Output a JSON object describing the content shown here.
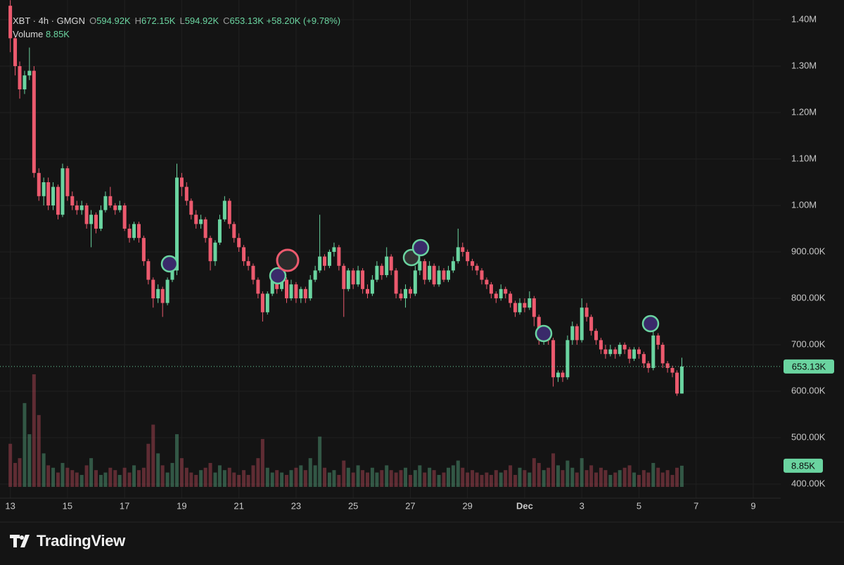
{
  "header": {
    "symbol": "XBT · 4h · GMGN",
    "open_key": "O",
    "open": "594.92K",
    "high_key": "H",
    "high": "672.15K",
    "low_key": "L",
    "low": "594.92K",
    "close_key": "C",
    "close": "653.13K",
    "change": "+58.20K (+9.78%)",
    "volume_key": "Volume",
    "volume": "8.85K"
  },
  "chart_data": {
    "type": "candlestick",
    "x": [
      13,
      13.17,
      13.33,
      13.5,
      13.67,
      13.83,
      14,
      14.17,
      14.33,
      14.5,
      14.67,
      14.83,
      15,
      15.17,
      15.33,
      15.5,
      15.67,
      15.83,
      16,
      16.17,
      16.33,
      16.5,
      16.67,
      16.83,
      17,
      17.17,
      17.33,
      17.5,
      17.67,
      17.83,
      18,
      18.17,
      18.33,
      18.5,
      18.67,
      18.83,
      19,
      19.17,
      19.33,
      19.5,
      19.67,
      19.83,
      20,
      20.17,
      20.33,
      20.5,
      20.67,
      20.83,
      21,
      21.17,
      21.33,
      21.5,
      21.67,
      21.83,
      22,
      22.17,
      22.33,
      22.5,
      22.67,
      22.83,
      23,
      23.17,
      23.33,
      23.5,
      23.67,
      23.83,
      24,
      24.17,
      24.33,
      24.5,
      24.67,
      24.83,
      25,
      25.17,
      25.33,
      25.5,
      25.67,
      25.83,
      26,
      26.17,
      26.33,
      26.5,
      26.67,
      26.83,
      27,
      27.17,
      27.33,
      27.5,
      27.67,
      27.83,
      28,
      28.17,
      28.33,
      28.5,
      28.67,
      28.83,
      29,
      29.17,
      29.33,
      29.5,
      29.67,
      29.83,
      30,
      30.17,
      30.33,
      30.5,
      30.67,
      30.83,
      31,
      31.17,
      31.33,
      31.5,
      31.67,
      31.83,
      32,
      32.17,
      32.33,
      32.5,
      32.67,
      32.83,
      33,
      33.17,
      33.33,
      33.5,
      33.67,
      33.83,
      34,
      34.17,
      34.33,
      34.5,
      34.67,
      34.83,
      35,
      35.17,
      35.33,
      35.5,
      35.67,
      35.83,
      36,
      36.17,
      36.33,
      36.5
    ],
    "open": [
      1430000,
      1360000,
      1300000,
      1250000,
      1280000,
      1290000,
      1070000,
      1020000,
      1050000,
      1000000,
      1040000,
      980000,
      1080000,
      1020000,
      1000000,
      990000,
      1000000,
      960000,
      980000,
      950000,
      990000,
      1020000,
      1000000,
      990000,
      1000000,
      950000,
      930000,
      960000,
      930000,
      880000,
      840000,
      800000,
      820000,
      790000,
      840000,
      860000,
      1060000,
      1040000,
      1010000,
      980000,
      960000,
      970000,
      930000,
      880000,
      920000,
      970000,
      1010000,
      960000,
      930000,
      910000,
      880000,
      870000,
      840000,
      810000,
      770000,
      810000,
      850000,
      820000,
      840000,
      800000,
      830000,
      800000,
      820000,
      800000,
      840000,
      860000,
      890000,
      870000,
      900000,
      910000,
      870000,
      820000,
      860000,
      830000,
      860000,
      820000,
      810000,
      840000,
      870000,
      850000,
      890000,
      860000,
      810000,
      800000,
      820000,
      810000,
      860000,
      880000,
      840000,
      870000,
      830000,
      860000,
      840000,
      860000,
      880000,
      910000,
      900000,
      880000,
      870000,
      860000,
      840000,
      830000,
      810000,
      800000,
      820000,
      810000,
      790000,
      770000,
      790000,
      780000,
      800000,
      760000,
      710000,
      730000,
      710000,
      630000,
      640000,
      630000,
      710000,
      740000,
      710000,
      780000,
      760000,
      730000,
      710000,
      690000,
      680000,
      690000,
      680000,
      700000,
      690000,
      670000,
      690000,
      680000,
      660000,
      650000,
      720000,
      700000,
      660000,
      650000,
      640000,
      594920
    ],
    "high": [
      1442000,
      1365000,
      1310000,
      1290000,
      1340000,
      1300000,
      1080000,
      1060000,
      1060000,
      1050000,
      1045000,
      1090000,
      1085000,
      1030000,
      1010000,
      1010000,
      1005000,
      990000,
      985000,
      1000000,
      1030000,
      1040000,
      1005000,
      1010000,
      1005000,
      960000,
      965000,
      965000,
      935000,
      885000,
      845000,
      830000,
      825000,
      845000,
      870000,
      1090000,
      1070000,
      1050000,
      1015000,
      990000,
      980000,
      975000,
      935000,
      925000,
      980000,
      1020000,
      1015000,
      965000,
      940000,
      915000,
      890000,
      875000,
      845000,
      815000,
      815000,
      860000,
      855000,
      850000,
      845000,
      840000,
      835000,
      825000,
      825000,
      850000,
      870000,
      980000,
      895000,
      905000,
      920000,
      915000,
      875000,
      865000,
      865000,
      870000,
      865000,
      830000,
      850000,
      880000,
      875000,
      910000,
      895000,
      865000,
      820000,
      830000,
      825000,
      870000,
      890000,
      885000,
      880000,
      875000,
      870000,
      865000,
      870000,
      890000,
      950000,
      920000,
      905000,
      885000,
      875000,
      865000,
      845000,
      835000,
      815000,
      830000,
      825000,
      815000,
      795000,
      800000,
      800000,
      815000,
      805000,
      765000,
      735000,
      735000,
      715000,
      645000,
      645000,
      720000,
      750000,
      745000,
      800000,
      790000,
      765000,
      735000,
      715000,
      700000,
      700000,
      695000,
      705000,
      705000,
      695000,
      695000,
      695000,
      685000,
      665000,
      730000,
      725000,
      705000,
      665000,
      655000,
      645000,
      672150
    ],
    "low": [
      1330000,
      1280000,
      1230000,
      1240000,
      1270000,
      1060000,
      1010000,
      1000000,
      990000,
      990000,
      970000,
      975000,
      1010000,
      990000,
      980000,
      980000,
      950000,
      910000,
      940000,
      945000,
      985000,
      995000,
      980000,
      985000,
      945000,
      920000,
      925000,
      920000,
      870000,
      830000,
      780000,
      790000,
      760000,
      785000,
      835000,
      850000,
      1020000,
      1000000,
      970000,
      950000,
      950000,
      920000,
      860000,
      870000,
      915000,
      965000,
      950000,
      920000,
      900000,
      870000,
      860000,
      830000,
      800000,
      750000,
      765000,
      805000,
      810000,
      815000,
      790000,
      795000,
      790000,
      790000,
      790000,
      795000,
      835000,
      855000,
      860000,
      865000,
      890000,
      860000,
      760000,
      815000,
      820000,
      825000,
      810000,
      800000,
      805000,
      835000,
      840000,
      845000,
      850000,
      800000,
      795000,
      780000,
      800000,
      805000,
      850000,
      830000,
      835000,
      825000,
      825000,
      835000,
      835000,
      855000,
      875000,
      890000,
      870000,
      860000,
      850000,
      830000,
      820000,
      800000,
      790000,
      795000,
      800000,
      780000,
      760000,
      765000,
      770000,
      775000,
      740000,
      700000,
      700000,
      700000,
      610000,
      620000,
      620000,
      625000,
      700000,
      700000,
      705000,
      750000,
      720000,
      700000,
      680000,
      670000,
      675000,
      670000,
      675000,
      680000,
      660000,
      665000,
      670000,
      650000,
      640000,
      645000,
      690000,
      650000,
      640000,
      630000,
      590000,
      594920
    ],
    "close": [
      1360000,
      1300000,
      1250000,
      1280000,
      1290000,
      1070000,
      1020000,
      1050000,
      1000000,
      1040000,
      980000,
      1080000,
      1020000,
      1000000,
      990000,
      1000000,
      960000,
      980000,
      950000,
      990000,
      1020000,
      1000000,
      990000,
      1000000,
      950000,
      930000,
      960000,
      930000,
      880000,
      840000,
      800000,
      820000,
      790000,
      840000,
      860000,
      1060000,
      1040000,
      1010000,
      980000,
      960000,
      970000,
      930000,
      880000,
      920000,
      970000,
      1010000,
      960000,
      930000,
      910000,
      880000,
      870000,
      840000,
      810000,
      770000,
      810000,
      850000,
      820000,
      840000,
      800000,
      830000,
      800000,
      820000,
      800000,
      840000,
      860000,
      890000,
      870000,
      900000,
      910000,
      870000,
      820000,
      860000,
      830000,
      860000,
      820000,
      810000,
      840000,
      870000,
      850000,
      890000,
      860000,
      810000,
      800000,
      820000,
      810000,
      860000,
      880000,
      840000,
      870000,
      830000,
      860000,
      840000,
      860000,
      880000,
      910000,
      900000,
      880000,
      870000,
      860000,
      840000,
      830000,
      810000,
      800000,
      820000,
      810000,
      790000,
      770000,
      790000,
      780000,
      800000,
      760000,
      710000,
      730000,
      710000,
      630000,
      640000,
      630000,
      710000,
      740000,
      710000,
      780000,
      760000,
      730000,
      710000,
      690000,
      680000,
      690000,
      680000,
      700000,
      690000,
      670000,
      690000,
      680000,
      660000,
      650000,
      720000,
      700000,
      660000,
      650000,
      640000,
      594920,
      653130
    ],
    "volume": [
      18000,
      10000,
      12000,
      35000,
      22000,
      47000,
      30000,
      14000,
      9000,
      8000,
      6000,
      10000,
      8000,
      7000,
      6000,
      5000,
      9000,
      12000,
      7000,
      5000,
      6000,
      8000,
      7000,
      5000,
      8000,
      6000,
      9000,
      7000,
      8000,
      18000,
      26000,
      14000,
      9000,
      6000,
      10000,
      22000,
      12000,
      8000,
      6000,
      5000,
      7000,
      8000,
      10000,
      6000,
      9000,
      7000,
      8000,
      6000,
      5000,
      7000,
      5000,
      9000,
      12000,
      20000,
      8000,
      6000,
      7000,
      6000,
      5000,
      7000,
      8000,
      9000,
      7000,
      12000,
      9000,
      21000,
      8000,
      6000,
      7000,
      5000,
      11000,
      8000,
      6000,
      9000,
      7000,
      6000,
      8000,
      6000,
      7000,
      9000,
      7000,
      6000,
      7000,
      8000,
      5000,
      7000,
      9000,
      6000,
      8000,
      7000,
      5000,
      6000,
      8000,
      9000,
      11000,
      8000,
      6000,
      7000,
      6000,
      5000,
      6000,
      5000,
      7000,
      6000,
      7000,
      9000,
      5000,
      8000,
      7000,
      6000,
      12000,
      10000,
      7000,
      8000,
      14000,
      9000,
      7000,
      11000,
      8000,
      6000,
      12000,
      7000,
      9000,
      6000,
      8000,
      7000,
      5000,
      6000,
      7000,
      8000,
      9000,
      6000,
      5000,
      7000,
      6000,
      10000,
      8000,
      6000,
      7000,
      5000,
      8000,
      8850
    ],
    "last_price_label": "653.13K",
    "last_volume_label": "8.85K",
    "up_color": "#6ad4a0",
    "down_color": "#ec5a6e",
    "xlim": [
      12.64,
      39.96
    ],
    "xticks": [
      13,
      15,
      17,
      19,
      21,
      23,
      25,
      27,
      29,
      {
        "value": 31,
        "label": "Dec"
      },
      {
        "value": 33,
        "label": "3"
      },
      {
        "value": 35,
        "label": "5"
      },
      {
        "value": 37,
        "label": "7"
      },
      {
        "value": 39,
        "label": "9"
      }
    ],
    "ylim": [
      369700,
      1442400
    ],
    "yticks": [
      {
        "value": 400000,
        "label": "400.00K"
      },
      {
        "value": 500000,
        "label": "500.00K"
      },
      {
        "value": 600000,
        "label": "600.00K"
      },
      {
        "value": 700000,
        "label": "700.00K"
      },
      {
        "value": 800000,
        "label": "800.00K"
      },
      {
        "value": 900000,
        "label": "900.00K"
      },
      {
        "value": 1000000,
        "label": "1.00M"
      },
      {
        "value": 1100000,
        "label": "1.10M"
      },
      {
        "value": 1200000,
        "label": "1.20M"
      },
      {
        "value": 1300000,
        "label": "1.30M"
      },
      {
        "value": 1400000,
        "label": "1.40M"
      }
    ],
    "grid": true
  },
  "footer": {
    "brand": "TradingView"
  }
}
